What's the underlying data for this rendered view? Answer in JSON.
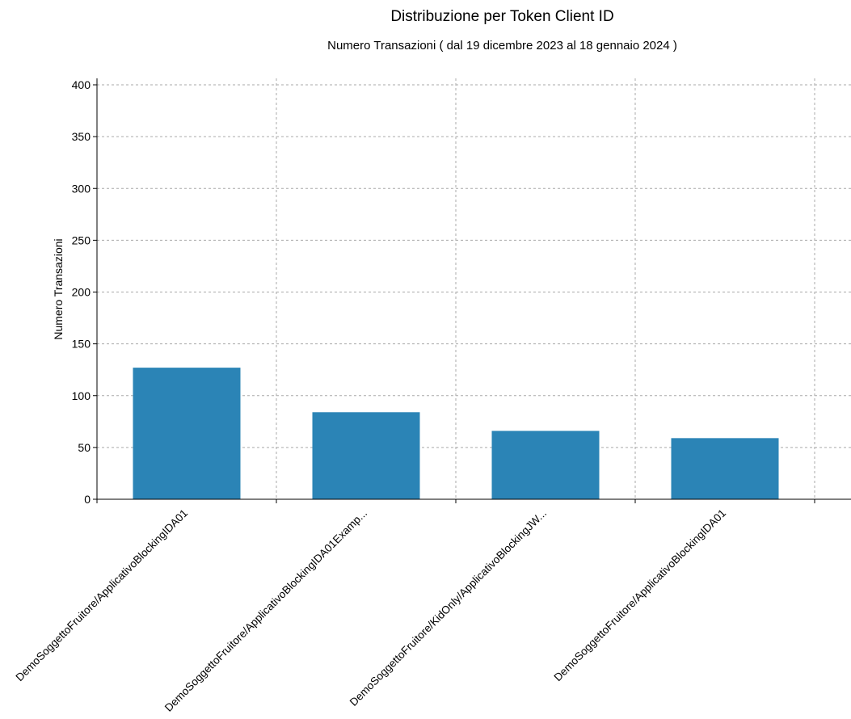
{
  "chart_data": {
    "type": "bar",
    "title": "Distribuzione per Token Client ID",
    "subtitle": "Numero Transazioni ( dal 19 dicembre 2023 al 18 gennaio 2024 )",
    "xlabel": "",
    "ylabel": "Numero Transazioni",
    "categories": [
      "DemoSoggettoFruitore/ApplicativoBlockingIDA01",
      "DemoSoggettoFruitore/ApplicativoBlockingIDA01Examp...",
      "DemoSoggettoFruitore/KidOnly/ApplicativoBlockingJW...",
      "DemoSoggettoFruitore/ApplicativoBlockingIDA01"
    ],
    "values": [
      127,
      84,
      66,
      59
    ],
    "ylim": [
      0,
      400
    ],
    "yticks": [
      0,
      50,
      100,
      150,
      200,
      250,
      300,
      350,
      400
    ],
    "grid": true,
    "bar_color": "#2b84b6",
    "grid_color": "#aaaaaa"
  }
}
